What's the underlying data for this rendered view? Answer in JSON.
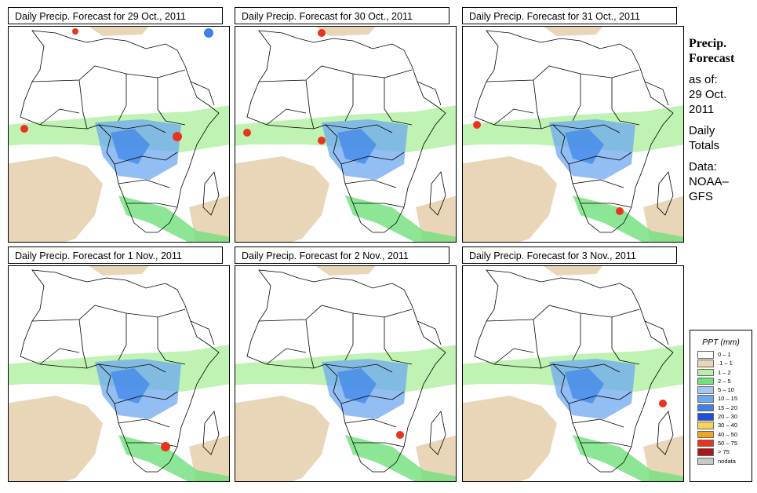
{
  "panels": [
    {
      "title": "Daily Precip. Forecast for  29 Oct., 2011"
    },
    {
      "title": "Daily Precip. Forecast for  30 Oct., 2011"
    },
    {
      "title": "Daily Precip. Forecast for  31 Oct., 2011"
    },
    {
      "title": "Daily Precip. Forecast for  1 Nov., 2011"
    },
    {
      "title": "Daily Precip. Forecast for  2 Nov., 2011"
    },
    {
      "title": "Daily Precip. Forecast for  3 Nov., 2011"
    }
  ],
  "sidebar": {
    "title_line1": "Precip.",
    "title_line2": "Forecast",
    "asof_line1": "as of:",
    "asof_line2": "29 Oct.",
    "asof_line3": "2011",
    "totals_line1": "Daily",
    "totals_line2": "Totals",
    "data_line1": "Data:",
    "data_line2": "NOAA–",
    "data_line3": "GFS"
  },
  "legend": {
    "title": "PPT (mm)",
    "items": [
      {
        "label": "0 – 1",
        "color": "#ffffff"
      },
      {
        "label": ".1 – 1",
        "color": "#e9d5b8"
      },
      {
        "label": "1 – 2",
        "color": "#b4f0a6"
      },
      {
        "label": "2 – 5",
        "color": "#70e07a"
      },
      {
        "label": "5 – 10",
        "color": "#a6c8f0"
      },
      {
        "label": "10 – 15",
        "color": "#6ea8f0"
      },
      {
        "label": "15 – 20",
        "color": "#3c82e8"
      },
      {
        "label": "20 – 30",
        "color": "#1e4fd8"
      },
      {
        "label": "30 – 40",
        "color": "#f7d35a"
      },
      {
        "label": "40 – 50",
        "color": "#f2a322"
      },
      {
        "label": "50 – 75",
        "color": "#e8341c"
      },
      {
        "label": "> 75",
        "color": "#b01414"
      },
      {
        "label": "nodata",
        "color": "#c8c8c8"
      }
    ]
  },
  "colors": {
    "dry": "#e9d5b8",
    "light": "#b4f0a6",
    "moderate": "#70e07a",
    "rain": "#6ea8f0",
    "heavy": "#3c82e8",
    "extreme": "#e8341c",
    "border": "#000000"
  }
}
